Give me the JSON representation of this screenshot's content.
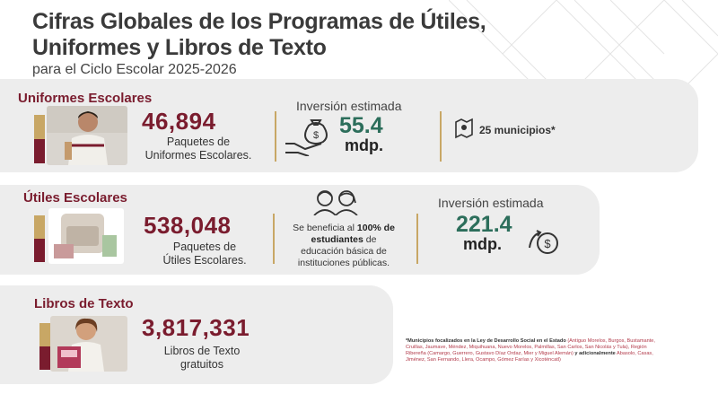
{
  "header": {
    "title": "Cifras Globales de los Programas de Útiles, Uniformes y Libros de Texto",
    "title_line1": "Cifras Globales de los Programas de Útiles,",
    "title_line2": "Uniformes y Libros de Texto",
    "subtitle": "para el Ciclo Escolar 2025-2026"
  },
  "uniformes": {
    "title": "Uniformes Escolares",
    "count": "46,894",
    "desc_line1": "Paquetes de",
    "desc_line2": "Uniformes Escolares.",
    "investment_label": "Inversión estimada",
    "investment_amount": "55.4",
    "investment_unit": "mdp.",
    "municipalities": "25 municipios*",
    "icons": [
      "money-bag-icon",
      "map-icon"
    ]
  },
  "utiles": {
    "title": "Útiles Escolares",
    "count": "538,048",
    "desc_line1": "Paquetes de",
    "desc_line2": "Útiles Escolares.",
    "benefit_pre": "Se beneficia al",
    "benefit_pct": "100% de",
    "benefit_bold": "estudiantes",
    "benefit_post1": "de",
    "benefit_line3": "educación básica de",
    "benefit_line4": "instituciones públicas.",
    "investment_label": "Inversión estimada",
    "investment_amount": "221.4",
    "investment_unit": "mdp.",
    "icons": [
      "students-icon",
      "money-cycle-icon"
    ]
  },
  "libros": {
    "title": "Libros de Texto",
    "count": "3,817,331",
    "desc_line1": "Libros de Texto",
    "desc_line2": "gratuitos"
  },
  "footnote": {
    "lead": "*Municipios focalizados en la Ley de Desarrollo Social en el Estado",
    "list": "(Antiguo Morelos, Burgos, Bustamante, Cruillas, Jaumave, Méndez, Miquihuana, Nuevo Morelos, Palmillas, San Carlos, San Nicolás y Tula), Región Ribereña (Camargo, Guerrero, Gustavo Díaz Ordaz, Mier y Miguel Alemán)",
    "mid": "y adicionalmente",
    "tail": "Abasolo, Casas, Jiménez, San Fernando, Llera, Ocampo, Gómez Farías y Xicoténcatl)"
  },
  "colors": {
    "maroon": "#7a1c2e",
    "green": "#2c6e5b",
    "gold": "#c8a765",
    "card_bg": "#ededed"
  }
}
